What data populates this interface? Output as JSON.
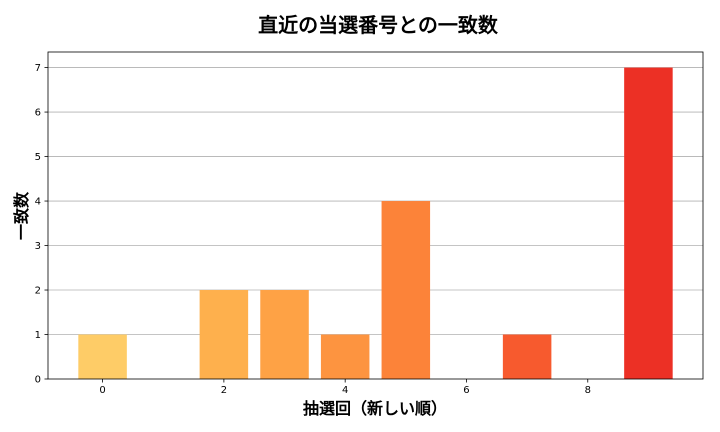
{
  "chart_data": {
    "type": "bar",
    "title": "直近の当選番号との一致数",
    "xlabel": "抽選回（新しい順）",
    "ylabel": "一致数",
    "x": [
      0,
      1,
      2,
      3,
      4,
      5,
      6,
      7,
      8,
      9
    ],
    "values": [
      1,
      0,
      2,
      2,
      1,
      4,
      0,
      1,
      0,
      7
    ],
    "colors": [
      "#fecc67",
      "#fec35f",
      "#feb04d",
      "#fea245",
      "#fd9440",
      "#fc8339",
      "#fb6a32",
      "#f75a2e",
      "#f1442a",
      "#ec3025"
    ],
    "xlim": [
      -0.9,
      9.9
    ],
    "ylim": [
      0,
      7.35
    ],
    "xticks": [
      0,
      2,
      4,
      6,
      8
    ],
    "yticks": [
      0,
      1,
      2,
      3,
      4,
      5,
      6,
      7
    ],
    "grid": "y",
    "legend": "none"
  }
}
